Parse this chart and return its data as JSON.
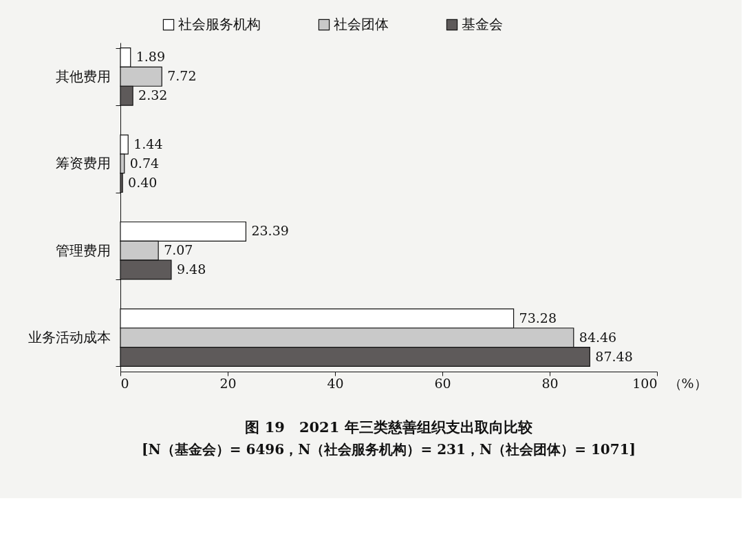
{
  "chart_data": {
    "type": "bar",
    "orientation": "horizontal",
    "title": "图 19　2021 年三类慈善组织支出取向比较",
    "subtitle": "[N（基金会）= 6496，N（社会服务机构）= 231，N（社会团体）= 1071]",
    "xlabel": "（%）",
    "categories": [
      "其他费用",
      "筹资费用",
      "管理费用",
      "业务活动成本"
    ],
    "series": [
      {
        "name": "社会服务机构",
        "color": "#ffffff",
        "values": [
          1.89,
          1.44,
          23.39,
          73.28
        ],
        "value_labels": [
          "1.89",
          "1.44",
          "23.39",
          "73.28"
        ]
      },
      {
        "name": "社会团体",
        "color": "#c9c9c9",
        "values": [
          7.72,
          0.74,
          7.07,
          84.46
        ],
        "value_labels": [
          "7.72",
          "0.74",
          "7.07",
          "84.46"
        ]
      },
      {
        "name": "基金会",
        "color": "#5e5a5a",
        "values": [
          2.32,
          0.4,
          9.48,
          87.48
        ],
        "value_labels": [
          "2.32",
          "0.40",
          "9.48",
          "87.48"
        ]
      }
    ],
    "xlim": [
      0,
      100
    ],
    "xticks": [
      0,
      20,
      40,
      60,
      80,
      100
    ],
    "legend": "top"
  }
}
